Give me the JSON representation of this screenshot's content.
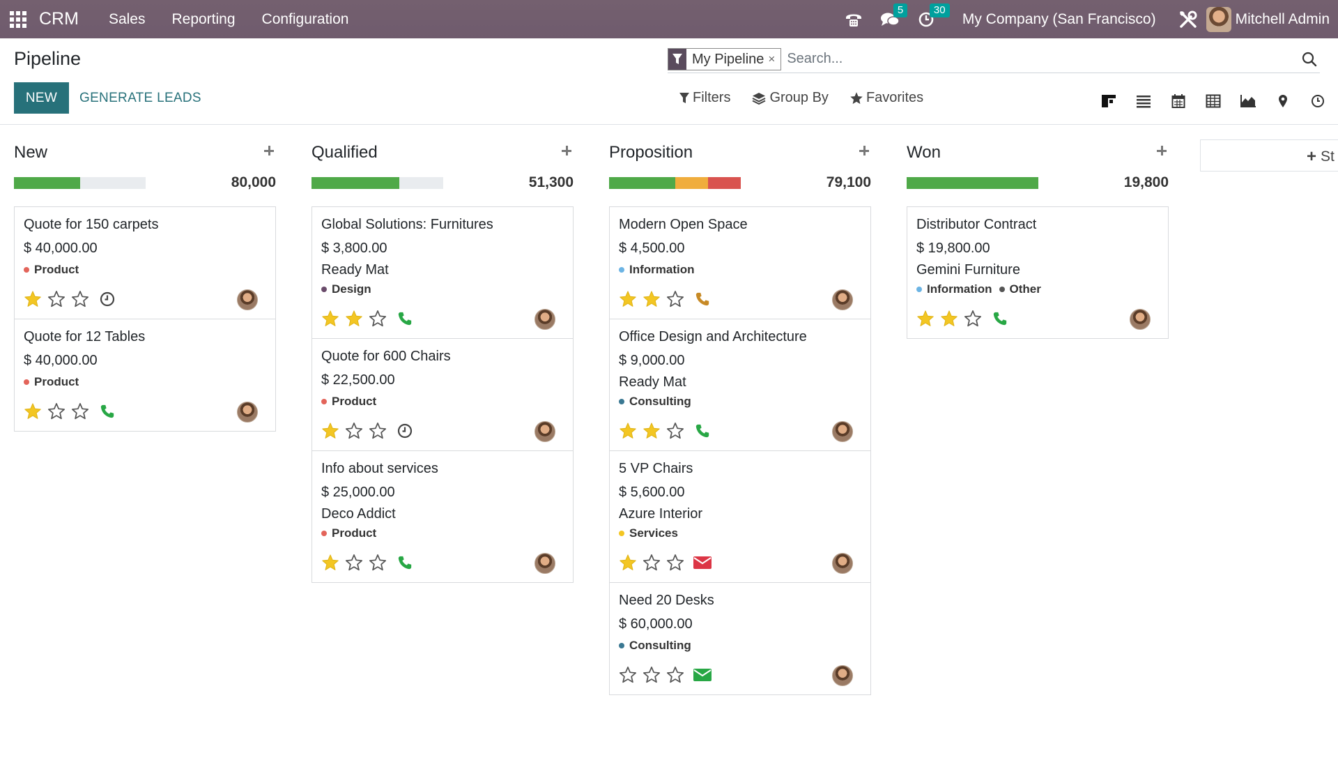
{
  "nav": {
    "brand": "CRM",
    "menu": [
      "Sales",
      "Reporting",
      "Configuration"
    ],
    "messages_count": "5",
    "activities_count": "30",
    "company": "My Company (San Francisco)",
    "user": "Mitchell Admin",
    "icons": [
      "apps-grid-icon",
      "phone-icon",
      "chat-icon",
      "clock-icon",
      "tools-icon"
    ]
  },
  "control": {
    "title": "Pipeline",
    "new_label": "NEW",
    "generate_label": "GENERATE LEADS",
    "facet_label": "My Pipeline",
    "facet_remove": "×",
    "search_placeholder": "Search...",
    "filters_label": "Filters",
    "groupby_label": "Group By",
    "favorites_label": "Favorites",
    "views": [
      "kanban",
      "list",
      "calendar",
      "pivot",
      "graph",
      "map",
      "activity"
    ],
    "active_view": "kanban"
  },
  "colors": {
    "navbar": "#6f5b6d",
    "primary": "#27717a",
    "progress_green": "#4fa948",
    "progress_orange": "#f0ad3c",
    "progress_red": "#d9534f",
    "star_gold": "#f3c623",
    "phone_green": "#28a745",
    "mail_red": "#dc3545",
    "mail_green": "#28a745"
  },
  "columns": [
    {
      "title": "New",
      "total": "80,000",
      "progress": [
        {
          "color": "#4fa948",
          "share": 0.5
        }
      ],
      "cards": [
        {
          "name": "Quote for 150 carpets",
          "revenue": "$ 40,000.00",
          "partner": "",
          "tags": [
            {
              "label": "Product",
              "color": "#e3645a"
            }
          ],
          "stars": 1,
          "activity": "clock"
        },
        {
          "name": "Quote for 12 Tables",
          "revenue": "$ 40,000.00",
          "partner": "",
          "tags": [
            {
              "label": "Product",
              "color": "#e3645a"
            }
          ],
          "stars": 1,
          "activity": "phone"
        }
      ]
    },
    {
      "title": "Qualified",
      "total": "51,300",
      "progress": [
        {
          "color": "#4fa948",
          "share": 0.667
        }
      ],
      "cards": [
        {
          "name": "Global Solutions: Furnitures",
          "revenue": "$ 3,800.00",
          "partner": "Ready Mat",
          "tags": [
            {
              "label": "Design",
              "color": "#6a4b6b"
            }
          ],
          "stars": 2,
          "activity": "phone"
        },
        {
          "name": "Quote for 600 Chairs",
          "revenue": "$ 22,500.00",
          "partner": "",
          "tags": [
            {
              "label": "Product",
              "color": "#e3645a"
            }
          ],
          "stars": 1,
          "activity": "clock"
        },
        {
          "name": "Info about services",
          "revenue": "$ 25,000.00",
          "partner": "Deco Addict",
          "tags": [
            {
              "label": "Product",
              "color": "#e3645a"
            }
          ],
          "stars": 1,
          "activity": "phone"
        }
      ]
    },
    {
      "title": "Proposition",
      "total": "79,100",
      "progress": [
        {
          "color": "#4fa948",
          "share": 0.5
        },
        {
          "color": "#f0ad3c",
          "share": 0.25
        },
        {
          "color": "#d9534f",
          "share": 0.25
        }
      ],
      "cards": [
        {
          "name": "Modern Open Space",
          "revenue": "$ 4,500.00",
          "partner": "",
          "tags": [
            {
              "label": "Information",
              "color": "#6cb4e4"
            }
          ],
          "stars": 2,
          "activity": "phone-orange"
        },
        {
          "name": "Office Design and Architecture",
          "revenue": "$ 9,000.00",
          "partner": "Ready Mat",
          "tags": [
            {
              "label": "Consulting",
              "color": "#3a7892"
            }
          ],
          "stars": 2,
          "activity": "phone"
        },
        {
          "name": "5 VP Chairs",
          "revenue": "$ 5,600.00",
          "partner": "Azure Interior",
          "tags": [
            {
              "label": "Services",
              "color": "#f3c623"
            }
          ],
          "stars": 1,
          "activity": "mail-red"
        },
        {
          "name": "Need 20 Desks",
          "revenue": "$ 60,000.00",
          "partner": "",
          "tags": [
            {
              "label": "Consulting",
              "color": "#3a7892"
            }
          ],
          "stars": 0,
          "activity": "mail-green"
        }
      ]
    },
    {
      "title": "Won",
      "total": "19,800",
      "progress": [
        {
          "color": "#4fa948",
          "share": 1
        }
      ],
      "cards": [
        {
          "name": "Distributor Contract",
          "revenue": "$ 19,800.00",
          "partner": "Gemini Furniture",
          "tags": [
            {
              "label": "Information",
              "color": "#6cb4e4"
            },
            {
              "label": "Other",
              "color": "#555555"
            }
          ],
          "stars": 2,
          "activity": "phone"
        }
      ]
    }
  ],
  "add_stage_label": "St"
}
